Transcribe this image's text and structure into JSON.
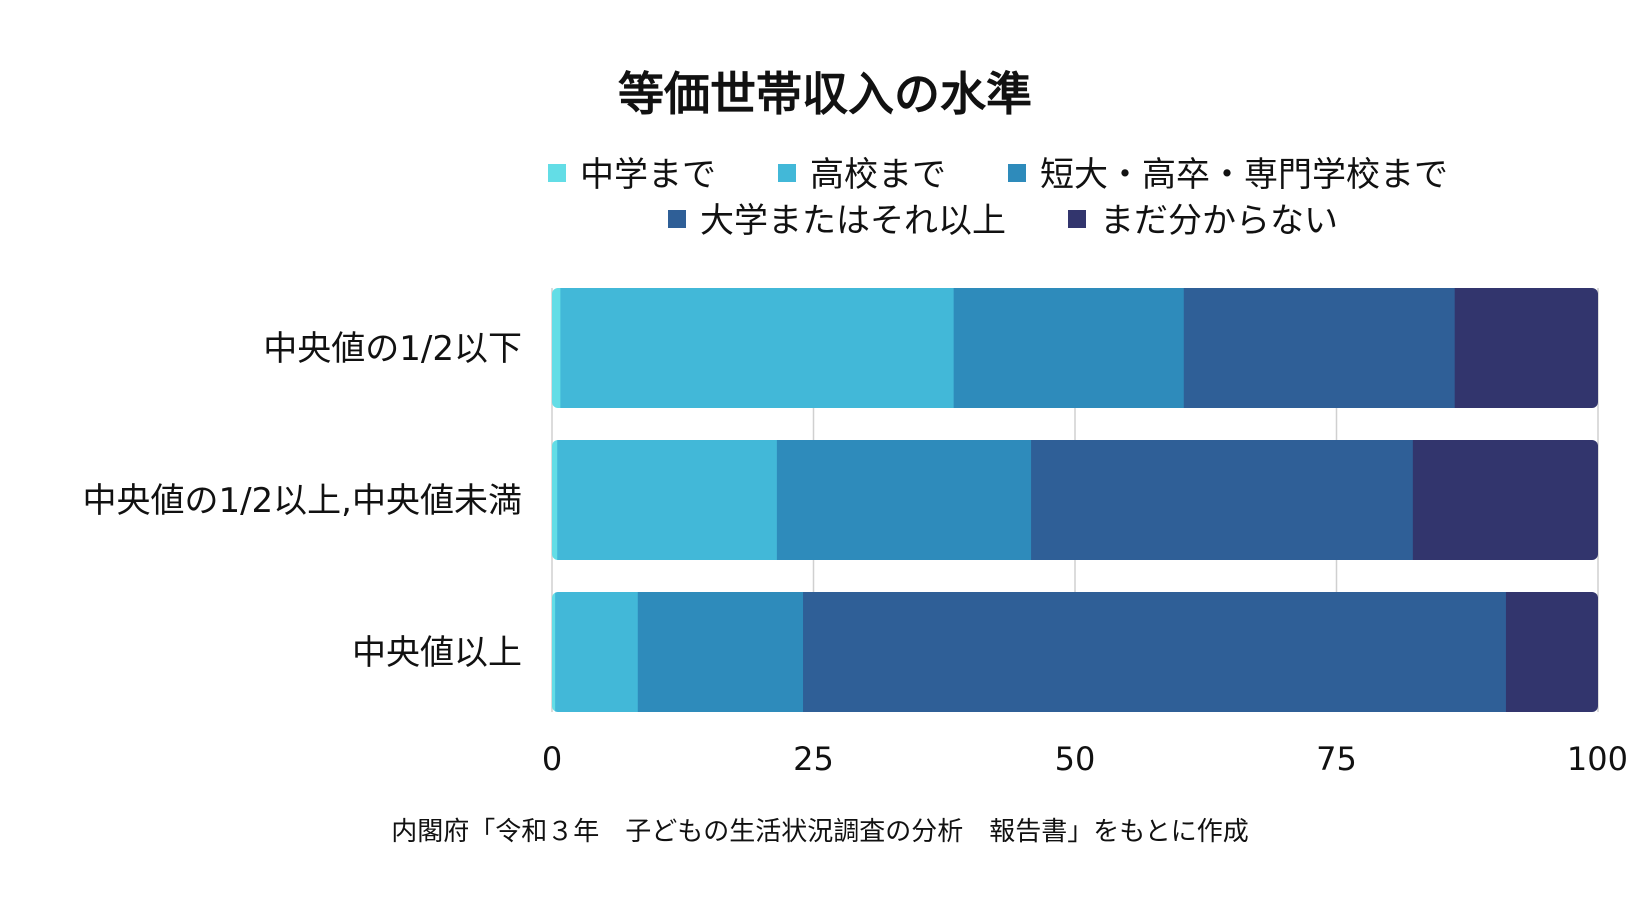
{
  "chart_data": {
    "type": "bar",
    "orientation": "horizontal",
    "stacked": true,
    "title": "等価世帯収入の水準",
    "categories": [
      "中央値の1/2以下",
      "中央値の1/2以上,中央値未満",
      "中央値以上"
    ],
    "series": [
      {
        "name": "中学まで",
        "color": "#63dde6",
        "values": [
          0.8,
          0.5,
          0.3
        ]
      },
      {
        "name": "高校まで",
        "color": "#42b8d8",
        "values": [
          37.6,
          21.0,
          7.9
        ]
      },
      {
        "name": "短大・高卒・専門学校まで",
        "color": "#2e8bbb",
        "values": [
          22.0,
          24.3,
          15.8
        ]
      },
      {
        "name": "大学またはそれ以上",
        "color": "#2f5f97",
        "values": [
          25.9,
          36.5,
          67.2
        ]
      },
      {
        "name": "まだ分からない",
        "color": "#32356d",
        "values": [
          13.7,
          17.7,
          8.8
        ]
      }
    ],
    "xlim": [
      0,
      100
    ],
    "xticks": [
      0,
      25,
      50,
      75,
      100
    ],
    "grid": true,
    "legend_position": "top"
  },
  "source_note": "内閣府「令和３年　子どもの生活状況調査の分析　報告書」をもとに作成"
}
